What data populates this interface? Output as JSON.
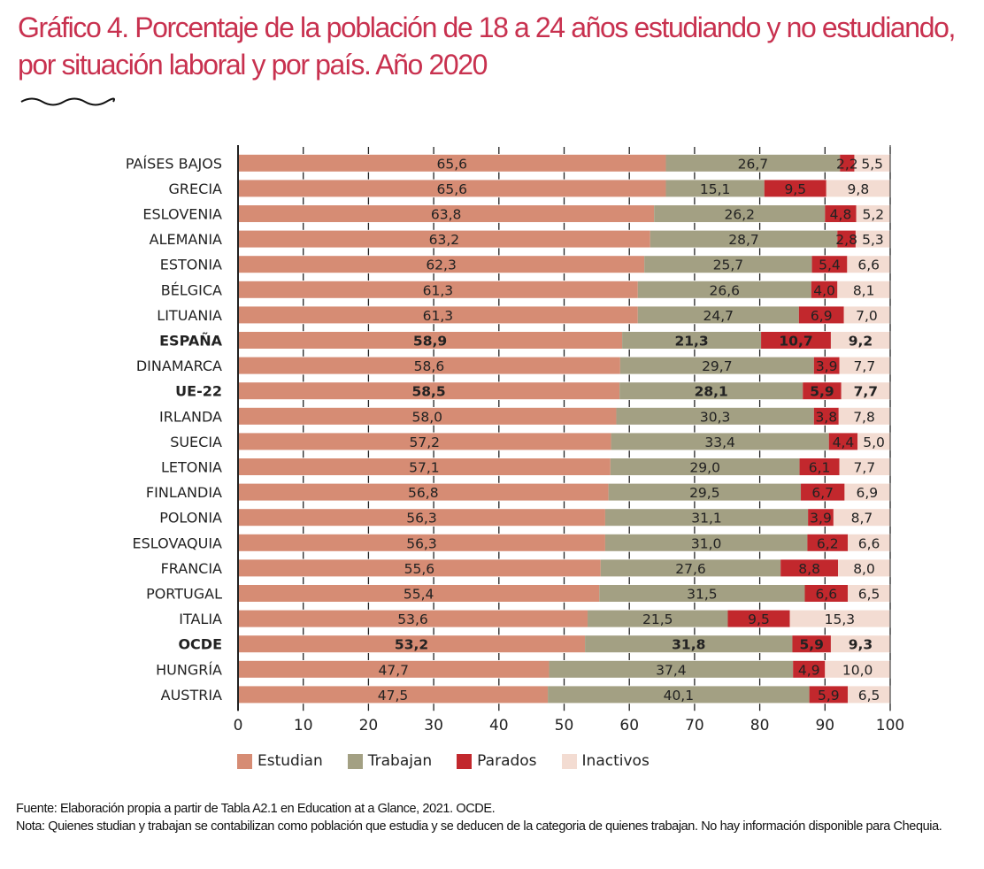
{
  "title": "Gráfico 4. Porcentaje de la población de 18 a 24 años estudiando y no estudiando, por situación laboral y por país. Año 2020",
  "decoration": "wave-divider",
  "colors": {
    "title": "#c8314f",
    "Estudian": "#d68c74",
    "Trabajan": "#a3a083",
    "Parados": "#c2282d",
    "Inactivos": "#f3dcd2",
    "axis": "#222222"
  },
  "footer": {
    "source": "Fuente: Elaboración propia a partir de Tabla A2.1 en Education at a Glance, 2021. OCDE.",
    "note": "Nota: Quienes studian y trabajan se contabilizan como población que estudia y se deducen de la categoria de quienes trabajan. No hay información disponible para Chequia."
  },
  "chart_data": {
    "type": "bar",
    "orientation": "horizontal",
    "stacked": true,
    "title": "Gráfico 4. Porcentaje de la población de 18 a 24 años estudiando y no estudiando, por situación laboral y por país. Año 2020",
    "xlabel": "",
    "ylabel": "",
    "xlim": [
      0,
      100
    ],
    "xticks": [
      0,
      10,
      20,
      30,
      40,
      50,
      60,
      70,
      80,
      90,
      100
    ],
    "grid": false,
    "legend": {
      "position": "bottom",
      "entries": [
        "Estudian",
        "Trabajan",
        "Parados",
        "Inactivos"
      ]
    },
    "categories": [
      "PAÍSES BAJOS",
      "GRECIA",
      "ESLOVENIA",
      "ALEMANIA",
      "ESTONIA",
      "BÉLGICA",
      "LITUANIA",
      "ESPAÑA",
      "DINAMARCA",
      "UE-22",
      "IRLANDA",
      "SUECIA",
      "LETONIA",
      "FINLANDIA",
      "POLONIA",
      "ESLOVAQUIA",
      "FRANCIA",
      "PORTUGAL",
      "ITALIA",
      "OCDE",
      "HUNGRÍA",
      "AUSTRIA"
    ],
    "highlighted": [
      "ESPAÑA",
      "UE-22",
      "OCDE"
    ],
    "series": [
      {
        "name": "Estudian",
        "values": [
          65.6,
          65.6,
          63.8,
          63.2,
          62.3,
          61.3,
          61.3,
          58.9,
          58.6,
          58.5,
          58.0,
          57.2,
          57.1,
          56.8,
          56.3,
          56.3,
          55.6,
          55.4,
          53.6,
          53.2,
          47.7,
          47.5
        ]
      },
      {
        "name": "Trabajan",
        "values": [
          26.7,
          15.1,
          26.2,
          28.7,
          25.7,
          26.6,
          24.7,
          21.3,
          29.7,
          28.1,
          30.3,
          33.4,
          29.0,
          29.5,
          31.1,
          31.0,
          27.6,
          31.5,
          21.5,
          31.8,
          37.4,
          40.1
        ]
      },
      {
        "name": "Parados",
        "values": [
          2.2,
          9.5,
          4.8,
          2.8,
          5.4,
          4.0,
          6.9,
          10.7,
          3.9,
          5.9,
          3.8,
          4.4,
          6.1,
          6.7,
          3.9,
          6.2,
          8.8,
          6.6,
          9.5,
          5.9,
          4.9,
          5.9
        ]
      },
      {
        "name": "Inactivos",
        "values": [
          5.5,
          9.8,
          5.2,
          5.3,
          6.6,
          8.1,
          7.0,
          9.2,
          7.7,
          7.7,
          7.8,
          5.0,
          7.7,
          6.9,
          8.7,
          6.6,
          8.0,
          6.5,
          15.3,
          9.3,
          10.0,
          6.5
        ]
      }
    ]
  }
}
